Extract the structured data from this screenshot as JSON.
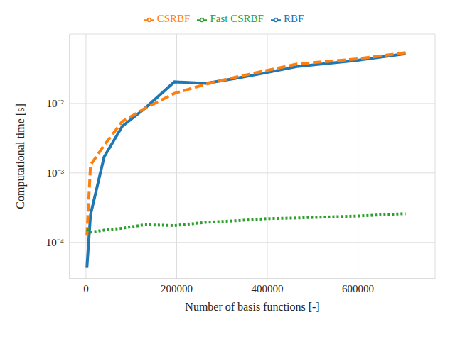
{
  "chart_data": {
    "type": "line",
    "x_label": "Number of basis functions [-]",
    "y_label": "Computational time [s]",
    "x": [
      2000,
      10000,
      40000,
      80000,
      130000,
      195000,
      265000,
      330000,
      400000,
      465000,
      600000,
      705000
    ],
    "series": [
      {
        "name": "RBF",
        "color": "#1f77b4",
        "line_style": "solid",
        "values": [
          4.3e-05,
          0.00025,
          0.0017,
          0.0047,
          0.0085,
          0.0205,
          0.0195,
          0.023,
          0.028,
          0.034,
          0.042,
          0.052
        ]
      },
      {
        "name": "CSRBF",
        "color": "#ff7f0e",
        "line_style": "dashed",
        "values": [
          0.000125,
          0.0013,
          0.0025,
          0.0055,
          0.0085,
          0.014,
          0.019,
          0.024,
          0.03,
          0.037,
          0.044,
          0.054
        ]
      },
      {
        "name": "Fast CSRBF",
        "color": "#2ca02c",
        "line_style": "dotted",
        "values": [
          0.000155,
          0.00014,
          0.00015,
          0.00016,
          0.00018,
          0.000175,
          0.000195,
          0.000205,
          0.00022,
          0.000225,
          0.00024,
          0.00026
        ]
      }
    ],
    "xlim": [
      -36000,
      770000
    ],
    "xticks": [
      0,
      200000,
      400000,
      600000
    ],
    "ylim": [
      3e-05,
      0.1
    ],
    "yticks": [
      {
        "value": 0.0001,
        "label": "10⁻⁴"
      },
      {
        "value": 0.001,
        "label": "10⁻³"
      },
      {
        "value": 0.01,
        "label": "10⁻²"
      }
    ],
    "log": "y",
    "grid": true,
    "legend": "top"
  }
}
